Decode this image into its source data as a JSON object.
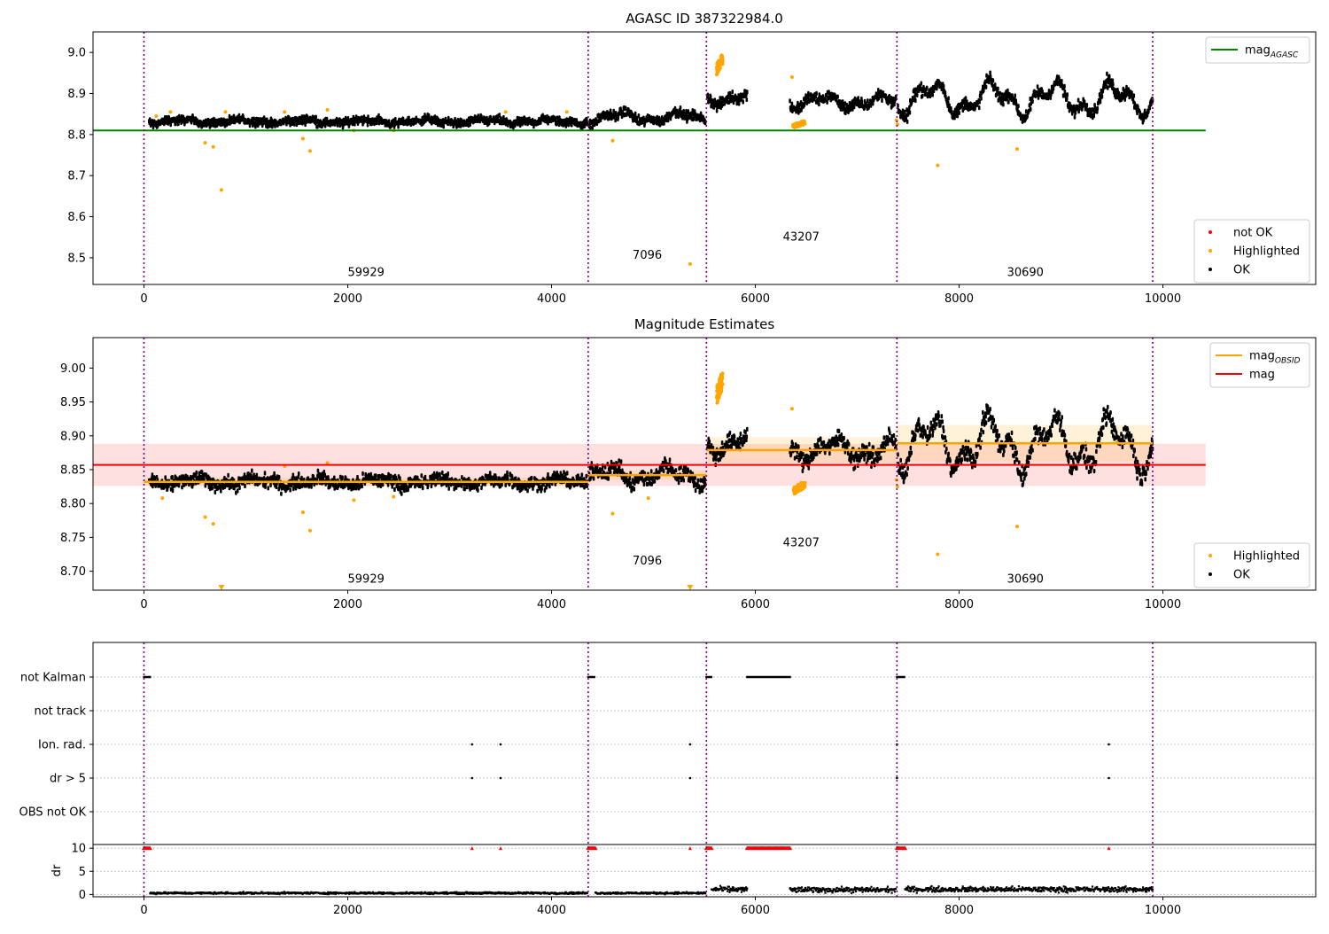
{
  "chart_data": [
    {
      "type": "scatter",
      "title": "AGASC ID 387322984.0",
      "xlim": [
        -500,
        11500
      ],
      "ylim": [
        8.435,
        9.05
      ],
      "xticks": [
        0,
        2000,
        4000,
        6000,
        8000,
        10000
      ],
      "xtick_labels": [
        "0",
        "2000",
        "4000",
        "6000",
        "8000",
        "10000"
      ],
      "yticks": [
        8.5,
        8.6,
        8.7,
        8.8,
        8.9,
        9.0
      ],
      "ytick_labels": [
        "8.5",
        "8.6",
        "8.7",
        "8.8",
        "8.9",
        "9.0"
      ],
      "obs_boundaries": [
        0,
        4360,
        5520,
        7390,
        9900
      ],
      "annotations": [
        {
          "text": "59929",
          "x": 2180,
          "y": 8.455
        },
        {
          "text": "7096",
          "x": 4940,
          "y": 8.498
        },
        {
          "text": "43207",
          "x": 6450,
          "y": 8.542
        },
        {
          "text": "30690",
          "x": 8650,
          "y": 8.455
        }
      ],
      "reference_line": {
        "name": "mag",
        "subscript": "AGASC",
        "y": 8.81,
        "x": [
          -500,
          10420
        ],
        "color": "#008000"
      },
      "segments": [
        {
          "x0": 50,
          "x1": 4350,
          "mean": 8.832,
          "amp": 0.004,
          "noise": 0.012
        },
        {
          "x0": 4370,
          "x1": 5510,
          "mean": 8.842,
          "amp": 0.01,
          "noise": 0.014
        },
        {
          "x0": 5530,
          "x1": 5920,
          "mean": 8.89,
          "amp": 0.012,
          "noise": 0.016
        },
        {
          "x0": 6340,
          "x1": 7380,
          "mean": 8.88,
          "amp": 0.012,
          "noise": 0.016
        },
        {
          "x0": 7400,
          "x1": 9900,
          "mean": 8.888,
          "amp": 0.03,
          "noise": 0.018
        }
      ],
      "highlighted_points": [
        [
          120,
          8.845
        ],
        [
          260,
          8.855
        ],
        [
          600,
          8.78
        ],
        [
          680,
          8.77
        ],
        [
          760,
          8.665
        ],
        [
          800,
          8.855
        ],
        [
          1380,
          8.855
        ],
        [
          1560,
          8.79
        ],
        [
          1630,
          8.76
        ],
        [
          1800,
          8.86
        ],
        [
          2060,
          8.81
        ],
        [
          2450,
          8.81
        ],
        [
          3550,
          8.855
        ],
        [
          4150,
          8.855
        ],
        [
          4600,
          8.785
        ],
        [
          5360,
          8.485
        ],
        [
          7790,
          8.725
        ],
        [
          8570,
          8.765
        ],
        [
          7385,
          8.835
        ],
        [
          7395,
          8.825
        ],
        [
          6360,
          8.94
        ]
      ],
      "highlighted_clusters": [
        {
          "x0": 5620,
          "x1": 5680,
          "y0": 8.945,
          "y1": 8.998
        },
        {
          "x0": 6370,
          "x1": 6490,
          "y0": 8.815,
          "y1": 8.835
        }
      ],
      "legends": [
        {
          "position": "upper right",
          "entries": [
            {
              "label": "mag",
              "subscript": "AGASC",
              "color": "#008000",
              "kind": "line"
            }
          ]
        },
        {
          "position": "lower right",
          "entries": [
            {
              "label": "not OK",
              "color": "#ff0000",
              "kind": "dot"
            },
            {
              "label": "Highlighted",
              "color": "#ffa500",
              "kind": "dot"
            },
            {
              "label": "OK",
              "color": "#000000",
              "kind": "dot"
            }
          ]
        }
      ]
    },
    {
      "type": "scatter",
      "title": "Magnitude Estimates",
      "xlim": [
        -500,
        11500
      ],
      "ylim": [
        8.672,
        9.045
      ],
      "xticks": [
        0,
        2000,
        4000,
        6000,
        8000,
        10000
      ],
      "xtick_labels": [
        "0",
        "2000",
        "4000",
        "6000",
        "8000",
        "10000"
      ],
      "yticks": [
        8.7,
        8.75,
        8.8,
        8.85,
        8.9,
        8.95,
        9.0
      ],
      "ytick_labels": [
        "8.70",
        "8.75",
        "8.80",
        "8.85",
        "8.90",
        "8.95",
        "9.00"
      ],
      "obs_boundaries": [
        0,
        4360,
        5520,
        7390,
        9900
      ],
      "annotations": [
        {
          "text": "59929",
          "x": 2180,
          "y": 8.683
        },
        {
          "text": "7096",
          "x": 4940,
          "y": 8.71
        },
        {
          "text": "43207",
          "x": 6450,
          "y": 8.737
        },
        {
          "text": "30690",
          "x": 8650,
          "y": 8.683
        }
      ],
      "mag_line": {
        "name": "mag",
        "y": 8.857,
        "band": [
          8.826,
          8.888
        ],
        "x": [
          -500,
          10420
        ],
        "color": "#ff0000"
      },
      "obsid_steps": [
        {
          "x0": 0,
          "x1": 4360,
          "y": 8.832,
          "band": [
            8.826,
            8.838
          ]
        },
        {
          "x0": 4360,
          "x1": 5520,
          "y": 8.842,
          "band": [
            8.835,
            8.849
          ]
        },
        {
          "x0": 5520,
          "x1": 7390,
          "y": 8.879,
          "band": [
            8.86,
            8.898
          ]
        },
        {
          "x0": 7390,
          "x1": 9900,
          "y": 8.889,
          "band": [
            8.862,
            8.916
          ]
        }
      ],
      "segments": [
        {
          "x0": 50,
          "x1": 4350,
          "mean": 8.832,
          "amp": 0.004,
          "noise": 0.012
        },
        {
          "x0": 4370,
          "x1": 5510,
          "mean": 8.842,
          "amp": 0.01,
          "noise": 0.014
        },
        {
          "x0": 5530,
          "x1": 5920,
          "mean": 8.89,
          "amp": 0.012,
          "noise": 0.016
        },
        {
          "x0": 6340,
          "x1": 7380,
          "mean": 8.88,
          "amp": 0.012,
          "noise": 0.016
        },
        {
          "x0": 7400,
          "x1": 9900,
          "mean": 8.888,
          "amp": 0.03,
          "noise": 0.018
        }
      ],
      "highlighted_points": [
        [
          180,
          8.808
        ],
        [
          600,
          8.78
        ],
        [
          680,
          8.77
        ],
        [
          1380,
          8.855
        ],
        [
          1560,
          8.787
        ],
        [
          1630,
          8.76
        ],
        [
          1800,
          8.86
        ],
        [
          2060,
          8.805
        ],
        [
          2450,
          8.81
        ],
        [
          4600,
          8.785
        ],
        [
          4950,
          8.808
        ],
        [
          7790,
          8.725
        ],
        [
          8570,
          8.766
        ],
        [
          7385,
          8.835
        ],
        [
          7395,
          8.825
        ],
        [
          6360,
          8.94
        ],
        [
          9550,
          8.89
        ]
      ],
      "highlighted_clusters": [
        {
          "x0": 5620,
          "x1": 5680,
          "y0": 8.945,
          "y1": 8.998
        },
        {
          "x0": 6370,
          "x1": 6490,
          "y0": 8.812,
          "y1": 8.835
        }
      ],
      "offscale_markers": [
        [
          760,
          8.676
        ],
        [
          5360,
          8.676
        ]
      ],
      "legends": [
        {
          "position": "upper right",
          "entries": [
            {
              "label": "mag",
              "subscript": "OBSID",
              "color": "#ffa500",
              "kind": "line"
            },
            {
              "label": "mag",
              "color": "#ff0000",
              "kind": "line"
            }
          ]
        },
        {
          "position": "lower right",
          "entries": [
            {
              "label": "Highlighted",
              "color": "#ffa500",
              "kind": "dot"
            },
            {
              "label": "OK",
              "color": "#000000",
              "kind": "dot"
            }
          ]
        }
      ]
    },
    {
      "type": "scatter",
      "title": "",
      "xlim": [
        -500,
        11500
      ],
      "xticks": [
        0,
        2000,
        4000,
        6000,
        8000,
        10000
      ],
      "xtick_labels": [
        "0",
        "2000",
        "4000",
        "6000",
        "8000",
        "10000"
      ],
      "obs_boundaries": [
        0,
        4360,
        5520,
        7390,
        9900
      ],
      "flag_rows": [
        "not Kalman",
        "not track",
        "Ion. rad.",
        "dr > 5",
        "OBS not OK"
      ],
      "flags": {
        "not Kalman": [
          [
            0,
            60
          ],
          [
            4360,
            4430
          ],
          [
            5520,
            5570
          ],
          [
            5920,
            6340
          ],
          [
            7390,
            7470
          ]
        ],
        "not track": [],
        "Ion. rad.": [
          [
            3220,
            3220
          ],
          [
            3500,
            3500
          ],
          [
            5360,
            5360
          ],
          [
            7390,
            7390
          ],
          [
            9470,
            9470
          ]
        ],
        "dr > 5": [
          [
            3220,
            3220
          ],
          [
            3500,
            3500
          ],
          [
            5360,
            5360
          ],
          [
            7390,
            7390
          ],
          [
            9470,
            9470
          ]
        ],
        "OBS not OK": []
      },
      "dr_panel": {
        "ylabel": "dr",
        "ylim": [
          -0.5,
          10.8
        ],
        "yticks": [
          0,
          5,
          10
        ],
        "ytick_labels": [
          "0",
          "5",
          "10"
        ],
        "clipped_value": 10,
        "red_at_clip": [
          [
            0,
            60
          ],
          [
            4360,
            4430
          ],
          [
            5520,
            5570
          ],
          [
            5920,
            6340
          ],
          [
            7390,
            7470
          ],
          [
            3220,
            3220
          ],
          [
            3500,
            3500
          ],
          [
            5360,
            5360
          ],
          [
            9470,
            9470
          ]
        ],
        "segments": [
          {
            "x0": 60,
            "x1": 4350,
            "mean": 0.3,
            "noise": 0.25
          },
          {
            "x0": 4430,
            "x1": 5510,
            "mean": 0.3,
            "noise": 0.25
          },
          {
            "x0": 5570,
            "x1": 5920,
            "mean": 1.1,
            "noise": 0.7
          },
          {
            "x0": 6340,
            "x1": 7380,
            "mean": 1.0,
            "noise": 0.7
          },
          {
            "x0": 7470,
            "x1": 9900,
            "mean": 1.1,
            "noise": 0.7
          }
        ]
      }
    }
  ]
}
